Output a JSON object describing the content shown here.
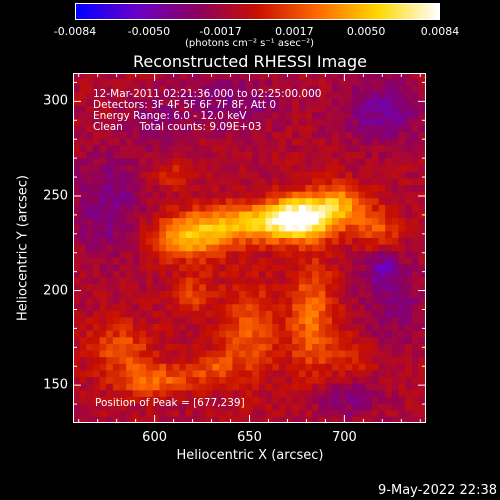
{
  "colorbar": {
    "ticks": [
      "-0.0084",
      "-0.0050",
      "-0.0017",
      "0.0017",
      "0.0050",
      "0.0084"
    ],
    "tick_values": [
      -0.0084,
      -0.005,
      -0.0017,
      0.0017,
      0.005,
      0.0084
    ],
    "units": "(photons cm⁻² s⁻¹ asec⁻²)",
    "colors": [
      "#0000ff",
      "#6a00c8",
      "#8c0060",
      "#c81000",
      "#ff6a00",
      "#ffd800",
      "#ffffff"
    ]
  },
  "info": {
    "time": "12-Mar-2011 02:21:36.000 to 02:25:00.000",
    "detectors": "Detectors: 3F 4F 5F 6F 7F 8F, Att 0",
    "energy": "Energy Range: 6.0 - 12.0 keV",
    "clean": "Clean     Total counts: 9.09E+03",
    "peak": "Position of Peak = [677,239]"
  },
  "timestamp": "9-May-2022 22:38",
  "chart_data": {
    "type": "heatmap",
    "title": "Reconstructed RHESSI Image",
    "xlabel": "Heliocentric X (arcsec)",
    "ylabel": "Heliocentric Y (arcsec)",
    "xlim": [
      557,
      743
    ],
    "ylim": [
      130,
      315
    ],
    "xticks": [
      600,
      650,
      700
    ],
    "yticks": [
      150,
      200,
      250,
      300
    ],
    "peak": [
      677,
      239
    ],
    "zlim": [
      -0.0084,
      0.0084
    ],
    "components": [
      {
        "x": 677,
        "y": 239,
        "amp": 0.0084,
        "sx": 12,
        "sy": 8
      },
      {
        "x": 650,
        "y": 236,
        "amp": 0.006,
        "sx": 20,
        "sy": 7
      },
      {
        "x": 618,
        "y": 228,
        "amp": 0.0055,
        "sx": 14,
        "sy": 8
      },
      {
        "x": 698,
        "y": 245,
        "amp": 0.005,
        "sx": 10,
        "sy": 8
      },
      {
        "x": 718,
        "y": 232,
        "amp": 0.0032,
        "sx": 8,
        "sy": 8
      },
      {
        "x": 650,
        "y": 178,
        "amp": 0.0035,
        "sx": 10,
        "sy": 18
      },
      {
        "x": 683,
        "y": 185,
        "amp": 0.004,
        "sx": 9,
        "sy": 22
      },
      {
        "x": 582,
        "y": 170,
        "amp": 0.003,
        "sx": 12,
        "sy": 10
      },
      {
        "x": 600,
        "y": 153,
        "amp": 0.0038,
        "sx": 14,
        "sy": 6
      },
      {
        "x": 630,
        "y": 160,
        "amp": 0.0028,
        "sx": 8,
        "sy": 6
      },
      {
        "x": 620,
        "y": 198,
        "amp": 0.0025,
        "sx": 8,
        "sy": 8
      },
      {
        "x": 610,
        "y": 262,
        "amp": 0.002,
        "sx": 8,
        "sy": 5
      },
      {
        "x": 705,
        "y": 165,
        "amp": 0.002,
        "sx": 8,
        "sy": 8
      },
      {
        "x": 725,
        "y": 195,
        "amp": -0.002,
        "sx": 12,
        "sy": 16
      },
      {
        "x": 575,
        "y": 245,
        "amp": -0.0025,
        "sx": 14,
        "sy": 20
      },
      {
        "x": 720,
        "y": 295,
        "amp": -0.003,
        "sx": 16,
        "sy": 12
      },
      {
        "x": 640,
        "y": 300,
        "amp": -0.0022,
        "sx": 18,
        "sy": 10
      },
      {
        "x": 600,
        "y": 290,
        "amp": -0.0018,
        "sx": 10,
        "sy": 10
      },
      {
        "x": 700,
        "y": 143,
        "amp": -0.002,
        "sx": 14,
        "sy": 8
      },
      {
        "x": 720,
        "y": 213,
        "amp": -0.0028,
        "sx": 6,
        "sy": 6
      }
    ]
  }
}
